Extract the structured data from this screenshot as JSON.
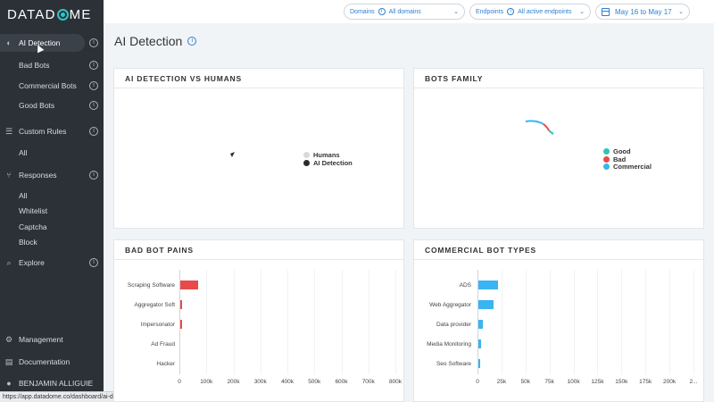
{
  "app": {
    "logo_text_1": "DATAD",
    "logo_text_2": "ME",
    "status_url": "https://app.datadome.co/dashboard/ai-detection"
  },
  "sidebar": {
    "items": [
      {
        "label": "AI Detection",
        "icon": "brain-icon",
        "active": true,
        "info": true
      },
      {
        "label": "Bad Bots",
        "sub": true,
        "info": true
      },
      {
        "label": "Commercial Bots",
        "sub": true,
        "info": true
      },
      {
        "label": "Good Bots",
        "sub": true,
        "info": true
      },
      {
        "label": "Custom Rules",
        "icon": "sliders-icon",
        "info": true
      },
      {
        "label": "All",
        "sub": true
      },
      {
        "label": "Responses",
        "icon": "fork-icon",
        "info": true
      },
      {
        "label": "All",
        "sub": true
      },
      {
        "label": "Whitelist",
        "sub": true
      },
      {
        "label": "Captcha",
        "sub": true
      },
      {
        "label": "Block",
        "sub": true
      },
      {
        "label": "Explore",
        "icon": "search-icon",
        "info": true
      }
    ],
    "bottom": [
      {
        "label": "Management",
        "icon": "gear-icon"
      },
      {
        "label": "Documentation",
        "icon": "document-icon"
      },
      {
        "label": "BENJAMIN ALLIGUIE",
        "icon": "user-icon"
      }
    ]
  },
  "topbar": {
    "domains_label": "Domains",
    "domains_value": "All domains",
    "endpoints_label": "Endpoints",
    "endpoints_value": "All active endpoints",
    "date_range": "May 16 to May 17"
  },
  "page": {
    "title": "AI Detection"
  },
  "panels": {
    "ai_vs_humans": {
      "title": "AI DETECTION VS HUMANS",
      "legend": [
        {
          "name": "Humans",
          "color": "#d9d9d9"
        },
        {
          "name": "AI Detection",
          "color": "#2b2b2b"
        }
      ]
    },
    "bots_family": {
      "title": "BOTS FAMILY",
      "legend": [
        {
          "name": "Good",
          "color": "#2ec4b6"
        },
        {
          "name": "Bad",
          "color": "#e84a4a"
        },
        {
          "name": "Commercial",
          "color": "#3ab4f2"
        }
      ]
    },
    "bad_bot_pains": {
      "title": "BAD BOT PAINS"
    },
    "commercial_bot_types": {
      "title": "COMMERCIAL BOT TYPES"
    }
  },
  "chart_data": [
    {
      "type": "bar",
      "orientation": "horizontal",
      "title": "BAD BOT PAINS",
      "categories": [
        "Scraping Software",
        "Aggregator Soft",
        "Impersonator",
        "Ad Fraud",
        "Hacker"
      ],
      "values": [
        65000,
        5000,
        4000,
        0,
        0
      ],
      "color": "#e84a4a",
      "xticks": [
        "0",
        "100k",
        "200k",
        "300k",
        "400k",
        "500k",
        "600k",
        "700k",
        "800k"
      ],
      "xlim": [
        0,
        800000
      ]
    },
    {
      "type": "bar",
      "orientation": "horizontal",
      "title": "COMMERCIAL BOT TYPES",
      "categories": [
        "ADS",
        "Web Aggregator",
        "Data provider",
        "Media Monitoring",
        "Seo Software"
      ],
      "values": [
        20000,
        16000,
        5000,
        3000,
        2000
      ],
      "color": "#3ab4f2",
      "xticks": [
        "0",
        "25k",
        "50k",
        "75k",
        "100k",
        "125k",
        "150k",
        "175k",
        "200k",
        "2..."
      ],
      "xlim": [
        0,
        225000
      ]
    }
  ]
}
